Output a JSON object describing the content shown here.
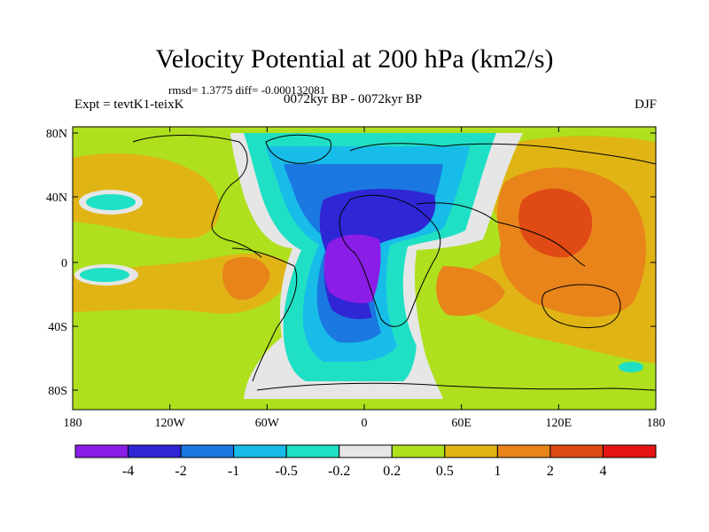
{
  "header": {
    "title": "Velocity Potential at 200 hPa (km2/s)",
    "stats": "rmsd= 1.3775 diff= -0.000132081",
    "experiment": "Expt = tevtK1-teixK",
    "period": "0072kyr BP - 0072kyr BP",
    "season": "DJF"
  },
  "axes": {
    "lon_ticks": [
      "180",
      "120W",
      "60W",
      "0",
      "60E",
      "120E",
      "180"
    ],
    "lat_ticks": [
      "80N",
      "40N",
      "0",
      "40S",
      "80S"
    ]
  },
  "colorbar": {
    "colors": [
      "#8a1ee6",
      "#2f26d6",
      "#1a78e0",
      "#18bce8",
      "#1fe0c4",
      "#e6e6e6",
      "#aee01e",
      "#e0b414",
      "#e8841a",
      "#e04a14",
      "#e61414"
    ],
    "labels": [
      "-4",
      "-2",
      "-1",
      "-0.5",
      "-0.2",
      "0.2",
      "0.5",
      "1",
      "2",
      "4"
    ]
  }
}
